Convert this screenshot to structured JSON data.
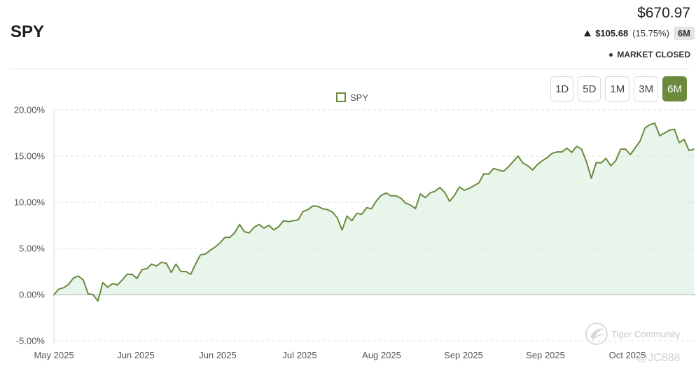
{
  "header": {
    "symbol": "SPY",
    "price": "$670.97",
    "change_value": "$105.68",
    "change_percent": "(15.75%)",
    "period_badge": "6M",
    "status": "MARKET CLOSED"
  },
  "icons": {
    "change_direction": "up-triangle-icon",
    "status_indicator": "dot-icon",
    "watermark_logo": "tiger-community-logo-icon"
  },
  "range_buttons": [
    {
      "label": "1D",
      "active": false
    },
    {
      "label": "5D",
      "active": false
    },
    {
      "label": "1M",
      "active": false
    },
    {
      "label": "3M",
      "active": false
    },
    {
      "label": "6M",
      "active": true
    }
  ],
  "colors": {
    "accent": "#6b8a3e",
    "area_fill": "#e8f5ea"
  },
  "watermark": {
    "brand": "Tiger Community",
    "handle": "@JC888"
  },
  "chart_data": {
    "type": "line",
    "filled_area": true,
    "grid": true,
    "legend_position": "top-center",
    "ylim": [
      -5,
      20
    ],
    "y_ticks": [
      20,
      15,
      10,
      5,
      0,
      -5
    ],
    "y_tick_labels": [
      "20.00%",
      "15.00%",
      "10.00%",
      "5.00%",
      "0.00%",
      "-5.00%"
    ],
    "x_tick_labels": [
      "May 2025",
      "Jun 2025",
      "Jun 2025",
      "Jul 2025",
      "Aug 2025",
      "Sep 2025",
      "Sep 2025",
      "Oct 2025"
    ],
    "series": [
      {
        "name": "SPY",
        "color": "#6b8a3e",
        "values": [
          0,
          0.6,
          0.75,
          1.1,
          1.8,
          2.0,
          1.6,
          0.1,
          0.0,
          -0.7,
          1.3,
          0.8,
          1.2,
          1.05,
          1.6,
          2.2,
          2.2,
          1.75,
          2.7,
          2.8,
          3.3,
          3.1,
          3.5,
          3.4,
          2.4,
          3.3,
          2.5,
          2.5,
          2.2,
          3.3,
          4.3,
          4.4,
          4.8,
          5.15,
          5.6,
          6.2,
          6.2,
          6.7,
          7.6,
          6.8,
          6.7,
          7.3,
          7.6,
          7.2,
          7.5,
          7.0,
          7.35,
          8.0,
          7.9,
          8.0,
          8.1,
          9.0,
          9.2,
          9.6,
          9.55,
          9.3,
          9.2,
          8.95,
          8.3,
          7.0,
          8.5,
          8.0,
          8.8,
          8.7,
          9.4,
          9.3,
          10.15,
          10.75,
          11.0,
          10.7,
          10.7,
          10.45,
          9.9,
          9.7,
          9.3,
          10.9,
          10.5,
          11.0,
          11.2,
          11.6,
          11.05,
          10.1,
          10.75,
          11.65,
          11.3,
          11.5,
          11.8,
          12.1,
          13.1,
          13.05,
          13.65,
          13.5,
          13.35,
          13.8,
          14.4,
          15.0,
          14.25,
          13.95,
          13.5,
          14.1,
          14.5,
          14.85,
          15.3,
          15.45,
          15.45,
          15.85,
          15.4,
          16.05,
          15.75,
          14.4,
          12.6,
          14.3,
          14.25,
          14.75,
          13.95,
          14.5,
          15.75,
          15.75,
          15.15,
          15.9,
          16.65,
          18.05,
          18.4,
          18.55,
          17.2,
          17.5,
          17.8,
          17.9,
          16.45,
          16.8,
          15.6,
          15.75
        ]
      }
    ]
  }
}
